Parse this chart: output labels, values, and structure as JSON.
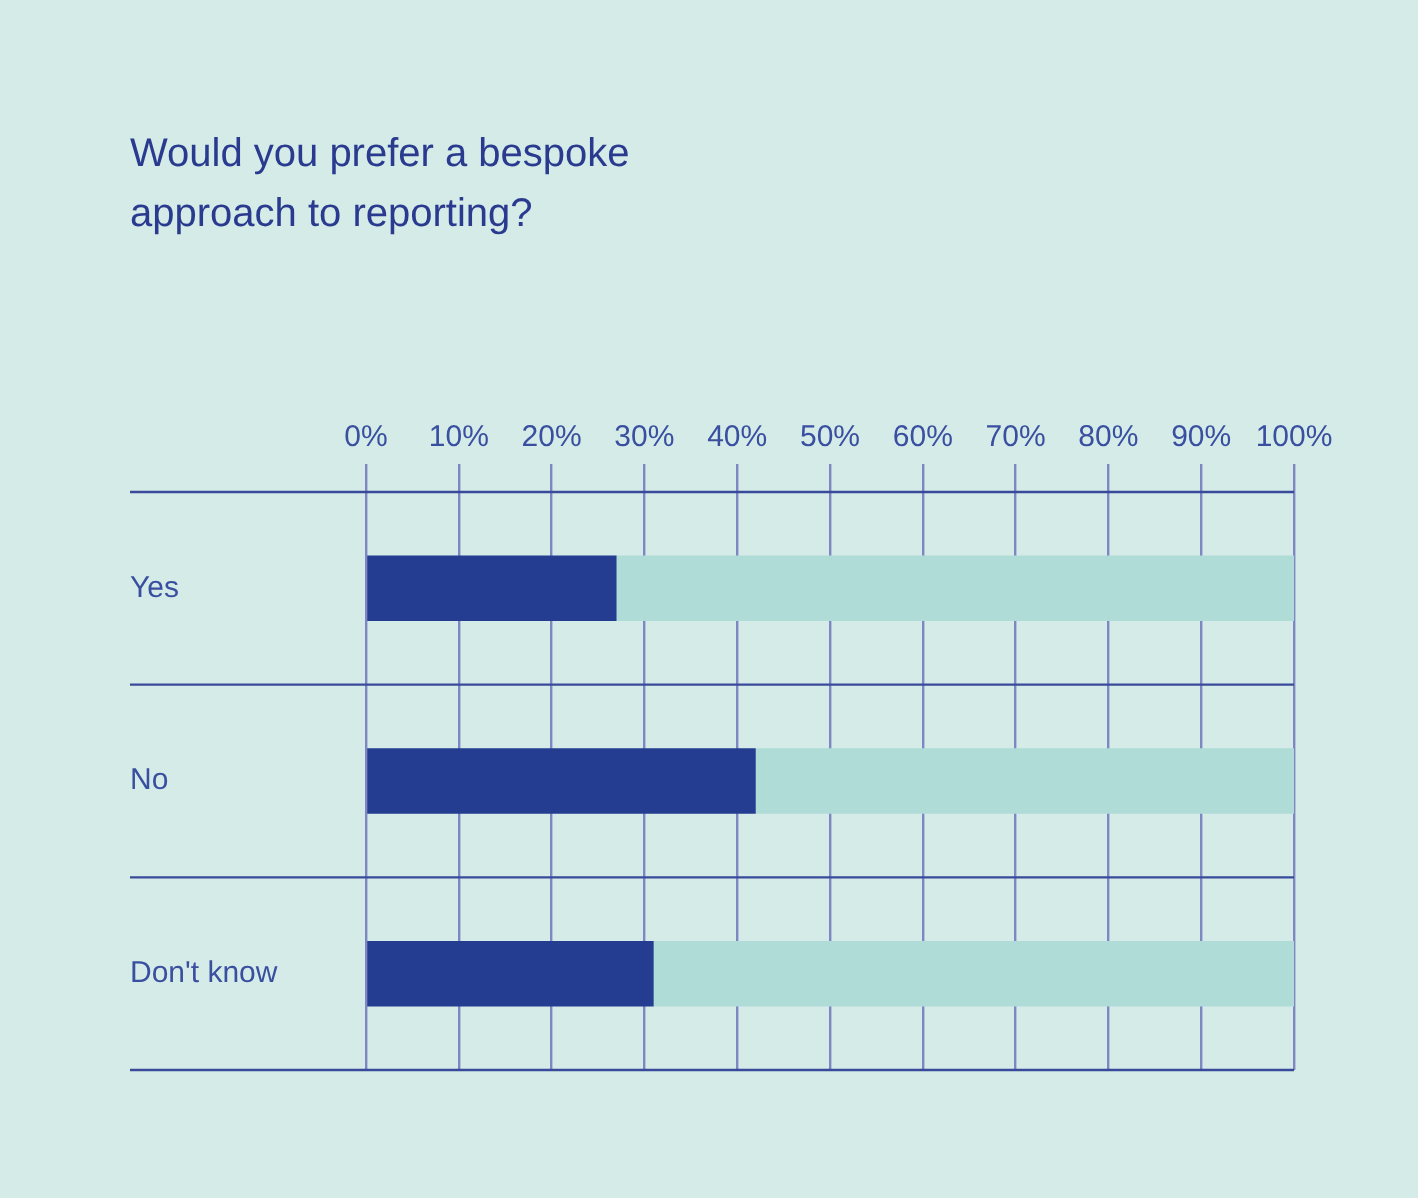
{
  "chart_data": {
    "type": "bar",
    "orientation": "horizontal",
    "stacked": true,
    "title": "Would you prefer a bespoke approach to reporting?",
    "categories": [
      "Yes",
      "No",
      "Don't know"
    ],
    "series": [
      {
        "color": "#243d91",
        "values": [
          27,
          42,
          31
        ]
      },
      {
        "color": "#afdcd7",
        "values": [
          73,
          58,
          69
        ]
      }
    ],
    "xlim": [
      0,
      100
    ],
    "xticks": [
      {
        "value": 0,
        "label": "0%"
      },
      {
        "value": 10,
        "label": "10%"
      },
      {
        "value": 20,
        "label": "20%"
      },
      {
        "value": 30,
        "label": "30%"
      },
      {
        "value": 40,
        "label": "40%"
      },
      {
        "value": 50,
        "label": "50%"
      },
      {
        "value": 60,
        "label": "60%"
      },
      {
        "value": 70,
        "label": "70%"
      },
      {
        "value": 80,
        "label": "80%"
      },
      {
        "value": 90,
        "label": "90%"
      },
      {
        "value": 100,
        "label": "100%"
      }
    ],
    "grid": true,
    "legend": false
  }
}
